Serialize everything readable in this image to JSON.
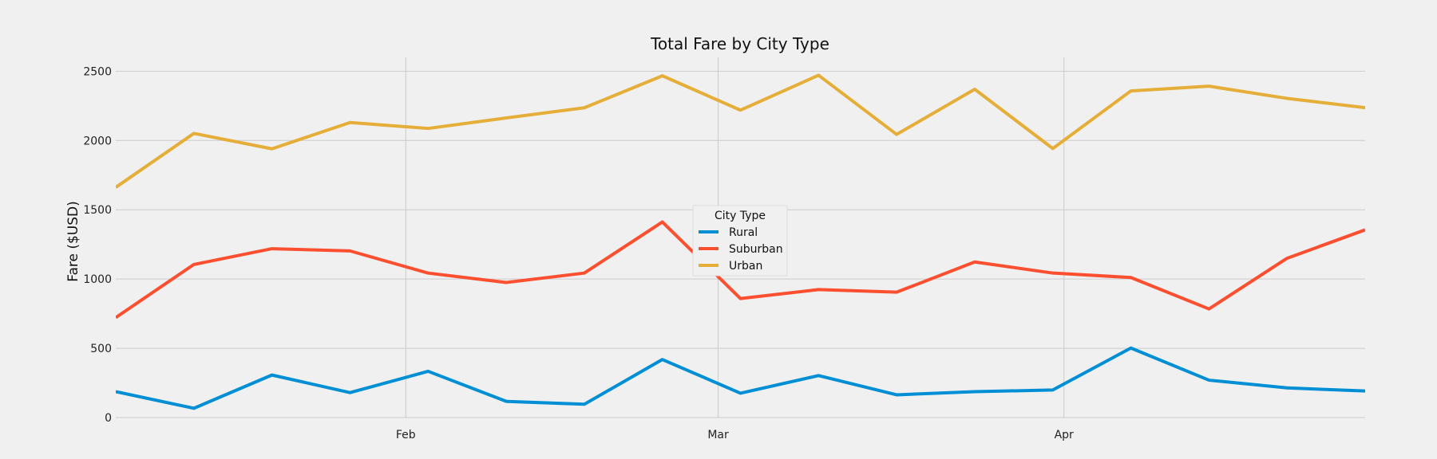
{
  "chart_data": {
    "type": "line",
    "title": "Total Fare by City Type",
    "xlabel": "",
    "ylabel": "Fare ($USD)",
    "ylim": [
      0,
      2600
    ],
    "xlim": [
      "2019-01-06",
      "2019-04-28"
    ],
    "yticks": [
      0,
      500,
      1000,
      1500,
      2000,
      2500
    ],
    "xticks": [
      {
        "date": "2019-02-01",
        "label": "Feb"
      },
      {
        "date": "2019-03-01",
        "label": "Mar"
      },
      {
        "date": "2019-04-01",
        "label": "Apr"
      }
    ],
    "grid": true,
    "legend": {
      "title": "City Type",
      "placement": "center"
    },
    "x": [
      "2019-01-06",
      "2019-01-13",
      "2019-01-20",
      "2019-01-27",
      "2019-02-03",
      "2019-02-10",
      "2019-02-17",
      "2019-02-24",
      "2019-03-03",
      "2019-03-10",
      "2019-03-17",
      "2019-03-24",
      "2019-03-31",
      "2019-04-07",
      "2019-04-14",
      "2019-04-21",
      "2019-04-28"
    ],
    "series": [
      {
        "name": "Rural",
        "color": "#008fd5",
        "values": [
          187,
          67,
          307,
          180,
          334,
          117,
          96,
          419,
          176,
          303,
          164,
          187,
          199,
          502,
          270,
          214,
          192
        ]
      },
      {
        "name": "Suburban",
        "color": "#fc4f30",
        "values": [
          722,
          1105,
          1219,
          1203,
          1043,
          975,
          1043,
          1412,
          859,
          924,
          905,
          1123,
          1043,
          1011,
          784,
          1150,
          1355
        ]
      },
      {
        "name": "Urban",
        "color": "#e5ae38",
        "values": [
          1662,
          2051,
          1940,
          2130,
          2087,
          2163,
          2236,
          2467,
          2219,
          2471,
          2044,
          2370,
          1942,
          2358,
          2392,
          2304,
          2237
        ]
      }
    ]
  }
}
